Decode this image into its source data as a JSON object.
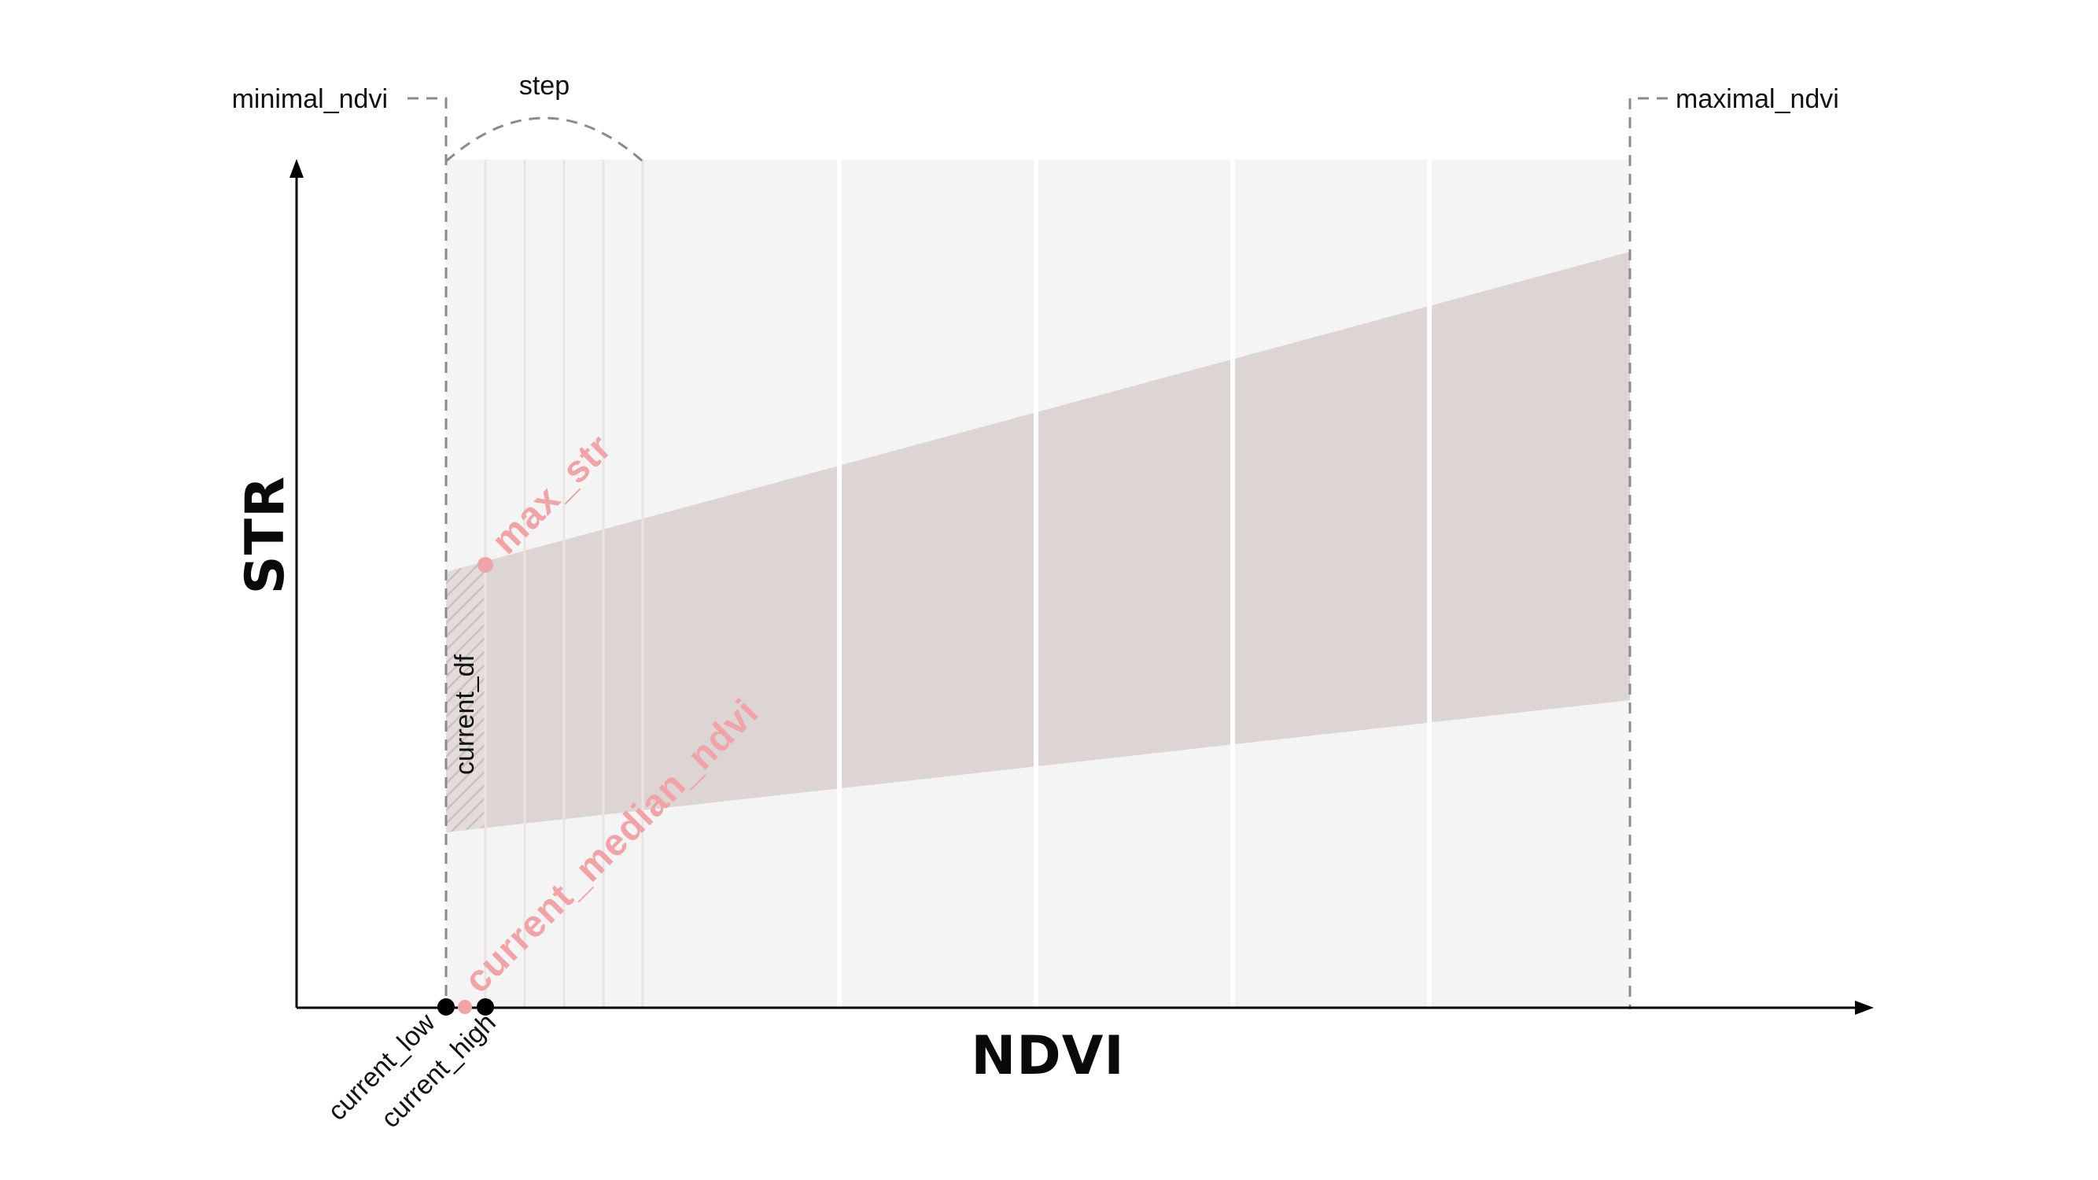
{
  "labels": {
    "x_axis_title": "NDVI",
    "y_axis_title": "STR",
    "minimal_ndvi": "minimal_ndvi",
    "maximal_ndvi": "maximal_ndvi",
    "step": "step",
    "current_df": "current_df",
    "max_str": "max_str",
    "current_median_ndvi": "current_median_ndvi",
    "current_low": "current_low",
    "current_high": "current_high"
  },
  "colors": {
    "background_region": "#f5f4f4",
    "band_fill": "#ddd5d3",
    "hatch": "#cfc6c4",
    "highlight": "#f2a3a8",
    "axis": "#000000",
    "dashed_guide": "#8a8a8a",
    "separator": "#ffffff",
    "fine_separator": "#e6e3e2"
  },
  "icons": {
    "x_axis_arrow": "arrow-right-icon",
    "y_axis_arrow": "arrow-up-icon",
    "point_marker": "filled-circle-icon"
  }
}
